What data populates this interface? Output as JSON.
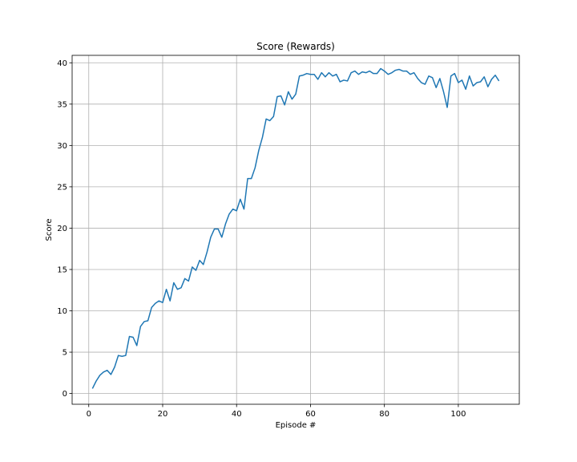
{
  "chart_data": {
    "type": "line",
    "title": "Score (Rewards)",
    "xlabel": "Episode #",
    "ylabel": "Score",
    "xlim": [
      -4.5,
      116.5
    ],
    "ylim": [
      -1.3,
      40.9
    ],
    "xticks": [
      0,
      20,
      40,
      60,
      80,
      100
    ],
    "yticks": [
      0,
      5,
      10,
      15,
      20,
      25,
      30,
      35,
      40
    ],
    "grid": true,
    "colors": {
      "line": "#1f77b4",
      "grid": "#b0b0b0",
      "axes": "#000000"
    },
    "series": [
      {
        "x": [
          1,
          2,
          3,
          4,
          5,
          6,
          7,
          8,
          9,
          10,
          11,
          12,
          13,
          14,
          15,
          16,
          17,
          18,
          19,
          20,
          21,
          22,
          23,
          24,
          25,
          26,
          27,
          28,
          29,
          30,
          31,
          32,
          33,
          34,
          35,
          36,
          37,
          38,
          39,
          40,
          41,
          42,
          43,
          44,
          45,
          46,
          47,
          48,
          49,
          50,
          51,
          52,
          53,
          54,
          55,
          56,
          57,
          58,
          59,
          60,
          61,
          62,
          63,
          64,
          65,
          66,
          67,
          68,
          69,
          70,
          71,
          72,
          73,
          74,
          75,
          76,
          77,
          78,
          79,
          80,
          81,
          82,
          83,
          84,
          85,
          86,
          87,
          88,
          89,
          90,
          91,
          92,
          93,
          94,
          95,
          96,
          97,
          98,
          99,
          100,
          101,
          102,
          103,
          104,
          105,
          106,
          107,
          108,
          109,
          110,
          111
        ],
        "y": [
          0.6,
          1.5,
          2.2,
          2.6,
          2.8,
          2.3,
          3.2,
          4.6,
          4.5,
          4.6,
          6.9,
          6.8,
          5.8,
          8.1,
          8.7,
          8.8,
          10.4,
          10.9,
          11.2,
          11.0,
          12.6,
          11.2,
          13.4,
          12.6,
          12.8,
          13.9,
          13.6,
          15.3,
          14.9,
          16.1,
          15.6,
          17.1,
          18.9,
          19.9,
          19.9,
          18.9,
          20.5,
          21.7,
          22.3,
          22.1,
          23.5,
          22.3,
          26.0,
          26.0,
          27.3,
          29.4,
          31.0,
          33.2,
          33.0,
          33.5,
          35.9,
          36.0,
          34.9,
          36.5,
          35.6,
          36.2,
          38.4,
          38.5,
          38.7,
          38.6,
          38.6,
          38.0,
          38.8,
          38.3,
          38.8,
          38.4,
          38.6,
          37.7,
          37.9,
          37.8,
          38.8,
          39.0,
          38.6,
          38.9,
          38.8,
          39.0,
          38.7,
          38.7,
          39.3,
          39.0,
          38.6,
          38.8,
          39.1,
          39.2,
          39.0,
          39.0,
          38.6,
          38.8,
          38.1,
          37.6,
          37.4,
          38.4,
          38.2,
          37.0,
          38.1,
          36.5,
          34.6,
          38.4,
          38.7,
          37.6,
          37.9,
          36.8,
          38.4,
          37.2,
          37.6,
          37.7,
          38.3,
          37.1,
          38.0,
          38.5,
          37.8
        ]
      }
    ]
  }
}
